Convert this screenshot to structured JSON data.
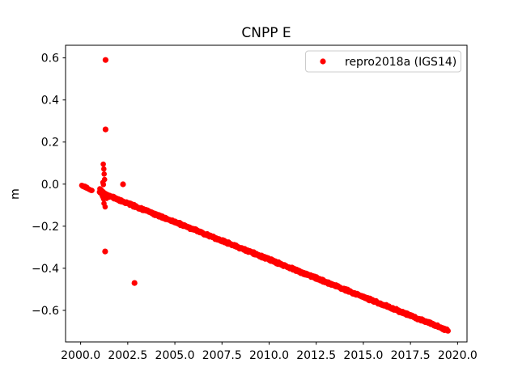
{
  "figure": {
    "title": "CNPP E",
    "background": "#ffffff"
  },
  "legend": {
    "label": "repro2018a (IGS14)",
    "marker": "red-dot",
    "marker_color": "#ff0000",
    "position": "upper right"
  },
  "chart_data": {
    "type": "scatter",
    "title": "CNPP E",
    "xlabel": "",
    "ylabel": "m",
    "grid": false,
    "legend_position": "upper right",
    "point_color": "#ff0000",
    "xlim": [
      1999.2,
      2020.5
    ],
    "ylim": [
      -0.75,
      0.66
    ],
    "x_ticks": [
      2000.0,
      2002.5,
      2005.0,
      2007.5,
      2010.0,
      2012.5,
      2015.0,
      2017.5,
      2020.0
    ],
    "y_ticks": [
      0.6,
      0.4,
      0.2,
      0.0,
      -0.2,
      -0.4,
      -0.6
    ],
    "x_tick_labels": [
      "2000.0",
      "2002.5",
      "2005.0",
      "2007.5",
      "2010.0",
      "2012.5",
      "2015.0",
      "2017.5",
      "2020.0"
    ],
    "y_tick_labels": [
      "0.6",
      "0.4",
      "0.2",
      "0.0",
      "−0.2",
      "−0.4",
      "−0.6"
    ],
    "series": [
      {
        "name": "repro2018a (IGS14)",
        "color": "#ff0000",
        "marker": "dot",
        "marker_radius_px": 3.3,
        "trend": {
          "x_start": 2001.0,
          "x_end": 2019.5,
          "y_start": -0.038,
          "y_end": -0.696,
          "slope_m_per_year": -0.0356,
          "points_per_year": 60,
          "y_jitter": 0.007
        },
        "trend_yearly_samples": [
          [
            2001.5,
            -0.055
          ],
          [
            2002.5,
            -0.091
          ],
          [
            2003.5,
            -0.126
          ],
          [
            2004.5,
            -0.162
          ],
          [
            2005.5,
            -0.198
          ],
          [
            2006.5,
            -0.233
          ],
          [
            2007.5,
            -0.269
          ],
          [
            2008.5,
            -0.304
          ],
          [
            2009.5,
            -0.34
          ],
          [
            2010.5,
            -0.375
          ],
          [
            2011.5,
            -0.411
          ],
          [
            2012.5,
            -0.447
          ],
          [
            2013.5,
            -0.482
          ],
          [
            2014.5,
            -0.518
          ],
          [
            2015.5,
            -0.553
          ],
          [
            2016.5,
            -0.589
          ],
          [
            2017.5,
            -0.625
          ],
          [
            2018.5,
            -0.66
          ],
          [
            2019.5,
            -0.696
          ]
        ],
        "cluster_points": [
          [
            2000.06,
            -0.006
          ],
          [
            2000.1,
            -0.01
          ],
          [
            2000.13,
            -0.008
          ],
          [
            2000.16,
            -0.012
          ],
          [
            2000.2,
            -0.014
          ],
          [
            2000.23,
            -0.01
          ],
          [
            2000.26,
            -0.016
          ],
          [
            2000.3,
            -0.018
          ],
          [
            2000.33,
            -0.015
          ],
          [
            2000.36,
            -0.02
          ],
          [
            2000.4,
            -0.022
          ],
          [
            2000.44,
            -0.024
          ],
          [
            2000.48,
            -0.026
          ],
          [
            2000.52,
            -0.028
          ],
          [
            2000.56,
            -0.03
          ],
          [
            2000.6,
            -0.03
          ],
          [
            2001.2,
            0.095
          ],
          [
            2001.23,
            0.072
          ],
          [
            2001.25,
            0.048
          ],
          [
            2001.27,
            0.022
          ],
          [
            2001.18,
            0.008
          ],
          [
            2001.21,
            -0.002
          ],
          [
            2001.02,
            -0.022
          ],
          [
            2001.05,
            -0.03
          ],
          [
            2001.08,
            -0.026
          ],
          [
            2001.1,
            -0.038
          ],
          [
            2001.12,
            -0.032
          ],
          [
            2001.13,
            -0.05
          ],
          [
            2001.15,
            -0.042
          ],
          [
            2001.16,
            -0.058
          ],
          [
            2001.18,
            -0.035
          ],
          [
            2001.19,
            -0.062
          ],
          [
            2001.21,
            -0.048
          ],
          [
            2001.22,
            -0.07
          ],
          [
            2001.24,
            -0.055
          ],
          [
            2001.26,
            -0.065
          ],
          [
            2001.27,
            -0.042
          ],
          [
            2001.29,
            -0.058
          ],
          [
            2001.31,
            -0.048
          ],
          [
            2001.33,
            -0.062
          ],
          [
            2001.35,
            -0.055
          ],
          [
            2001.37,
            -0.068
          ],
          [
            2001.39,
            -0.06
          ],
          [
            2001.41,
            -0.052
          ],
          [
            2001.24,
            -0.092
          ],
          [
            2001.3,
            -0.108
          ]
        ],
        "outlier_points": [
          [
            2001.32,
            0.59
          ],
          [
            2001.32,
            0.26
          ],
          [
            2001.3,
            -0.32
          ],
          [
            2002.25,
            -0.001
          ],
          [
            2002.86,
            -0.47
          ]
        ]
      }
    ]
  }
}
